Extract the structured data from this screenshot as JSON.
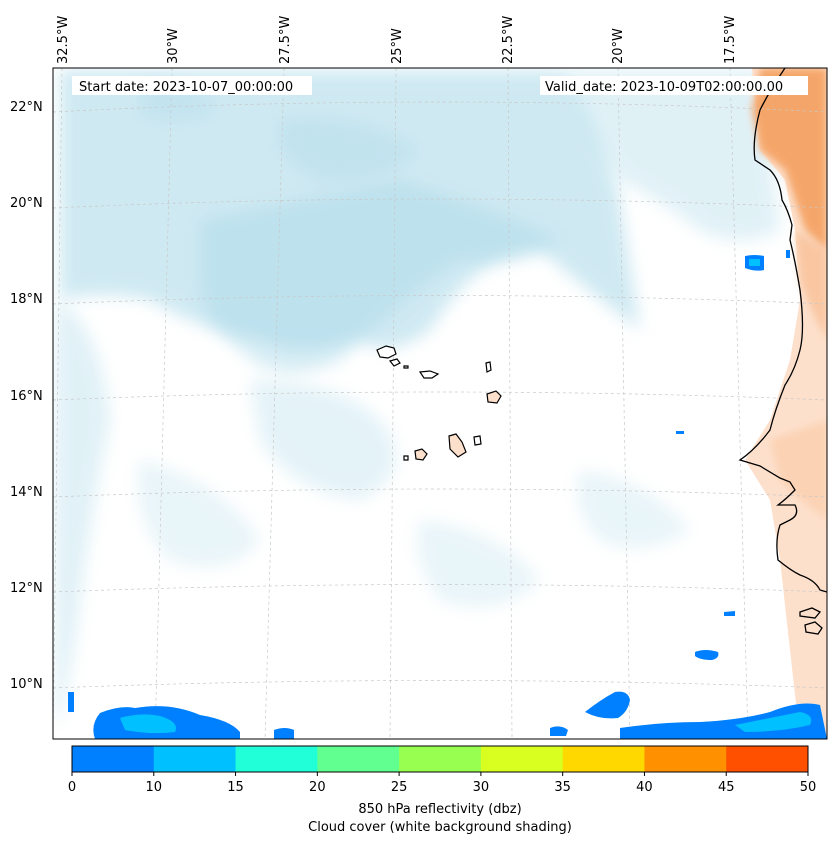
{
  "header": {
    "start_date": "Start date: 2023-10-07_00:00:00",
    "valid_date": "Valid_date: 2023-10-09T02:00:00.00"
  },
  "longitude_labels": [
    "32.5°W",
    "30°W",
    "27.5°W",
    "25°W",
    "22.5°W",
    "20°W",
    "17.5°W"
  ],
  "latitude_labels": [
    "22°N",
    "20°N",
    "18°N",
    "16°N",
    "14°N",
    "12°N",
    "10°N"
  ],
  "colorbar": {
    "ticks": [
      "0",
      "10",
      "15",
      "20",
      "25",
      "30",
      "35",
      "40",
      "45",
      "50"
    ],
    "colors": [
      "#0080ff",
      "#00c0ff",
      "#20ffd8",
      "#60ff90",
      "#98ff50",
      "#d8ff20",
      "#ffd800",
      "#ff9000",
      "#ff5000"
    ],
    "label_line1": "850 hPa reflectivity (dbz)",
    "label_line2": "Cloud cover (white background shading)"
  },
  "colors": {
    "cloud": "#a8d8e8",
    "land_dust": "#f4a060",
    "land_light": "#fde0cc",
    "coast": "#000000",
    "grid": "#c8c8c8"
  }
}
